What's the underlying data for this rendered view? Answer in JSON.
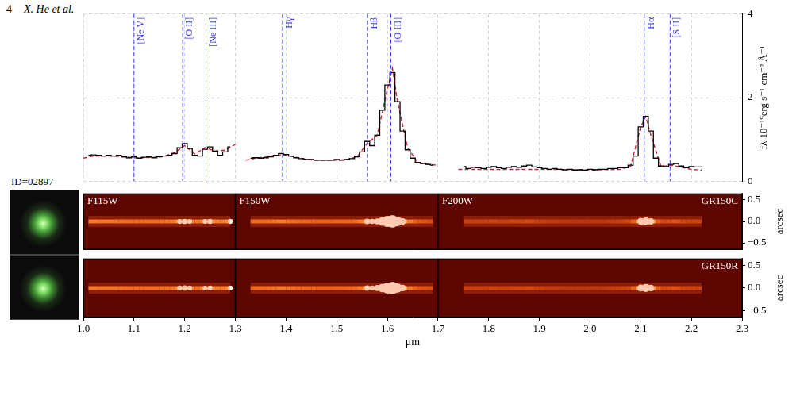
{
  "header": {
    "page": "4",
    "running_title": "X. He et al."
  },
  "object_id": "ID=02897",
  "chart_data": [
    {
      "type": "line",
      "xlim": [
        1.0,
        2.3
      ],
      "xticks": [
        {
          "value": 1,
          "label": "1.0"
        },
        1.1,
        1.2,
        1.3,
        1.4,
        1.5,
        1.6,
        1.7,
        1.8,
        1.9,
        {
          "value": 2,
          "label": "2.0"
        },
        2.1,
        2.2,
        2.3
      ],
      "ylim": [
        0,
        4
      ],
      "yticks": [
        0,
        2,
        4
      ],
      "ylabel": "fλ 10⁻¹⁹erg s⁻¹ cm⁻² Å⁻¹",
      "grid": true,
      "tick_labels": "y",
      "series": [
        {
          "color": "#000000",
          "line_style": "steps",
          "x": [
            1.01,
            1.02,
            1.03,
            1.04,
            1.05,
            1.06,
            1.07,
            1.08,
            1.09,
            1.1,
            1.11,
            1.12,
            1.13,
            1.14,
            1.15,
            1.16,
            1.17,
            1.18,
            1.19,
            1.2,
            1.21,
            1.22,
            1.23,
            1.24,
            1.25,
            1.26,
            1.27,
            1.28,
            1.29,
            1.31,
            1.33,
            1.34,
            1.35,
            1.36,
            1.37,
            1.38,
            1.39,
            1.4,
            1.41,
            1.42,
            1.43,
            1.44,
            1.45,
            1.46,
            1.47,
            1.48,
            1.49,
            1.5,
            1.51,
            1.52,
            1.53,
            1.54,
            1.55,
            1.56,
            1.57,
            1.58,
            1.59,
            1.6,
            1.61,
            1.62,
            1.63,
            1.64,
            1.65,
            1.66,
            1.67,
            1.68,
            1.69,
            1.72,
            1.75,
            1.76,
            1.77,
            1.78,
            1.79,
            1.8,
            1.81,
            1.82,
            1.83,
            1.84,
            1.85,
            1.86,
            1.87,
            1.88,
            1.89,
            1.9,
            1.91,
            1.92,
            1.93,
            1.94,
            1.95,
            1.96,
            1.97,
            1.98,
            1.99,
            2.0,
            2.01,
            2.02,
            2.03,
            2.04,
            2.05,
            2.06,
            2.07,
            2.08,
            2.09,
            2.1,
            2.11,
            2.12,
            2.13,
            2.14,
            2.15,
            2.16,
            2.17,
            2.18,
            2.19,
            2.2,
            2.21,
            2.22
          ],
          "values": [
            0.62,
            0.63,
            0.62,
            0.6,
            0.62,
            0.6,
            0.62,
            0.58,
            0.56,
            0.58,
            0.55,
            0.57,
            0.58,
            0.56,
            0.58,
            0.6,
            0.62,
            0.66,
            0.8,
            0.9,
            0.78,
            0.62,
            0.6,
            0.76,
            0.82,
            0.72,
            0.62,
            0.7,
            0.82,
            null,
            0.55,
            0.56,
            0.55,
            0.56,
            0.58,
            0.62,
            0.66,
            0.64,
            0.6,
            0.56,
            0.54,
            0.52,
            0.52,
            0.5,
            0.5,
            0.5,
            0.5,
            0.52,
            0.5,
            0.52,
            0.54,
            0.58,
            0.7,
            0.95,
            0.85,
            1.1,
            1.7,
            2.3,
            2.6,
            1.9,
            1.2,
            0.75,
            0.55,
            0.45,
            0.42,
            0.4,
            0.38,
            null,
            0.35,
            0.3,
            0.33,
            0.32,
            0.3,
            0.33,
            0.35,
            0.32,
            0.3,
            0.33,
            0.35,
            0.33,
            0.36,
            0.38,
            0.34,
            0.32,
            0.3,
            0.28,
            0.3,
            0.28,
            0.27,
            0.28,
            0.26,
            0.27,
            0.26,
            0.28,
            0.27,
            0.28,
            0.28,
            0.3,
            0.3,
            0.32,
            0.32,
            0.38,
            0.6,
            1.3,
            1.55,
            1.2,
            0.55,
            0.36,
            0.35,
            0.4,
            0.42,
            0.36,
            0.32,
            0.35,
            0.34,
            0.34
          ]
        },
        {
          "color": "#d0213c",
          "line_style": "dashed",
          "x": [
            1.0,
            1.02,
            1.04,
            1.06,
            1.08,
            1.1,
            1.12,
            1.14,
            1.16,
            1.18,
            1.2,
            1.22,
            1.24,
            1.26,
            1.28,
            1.3,
            1.31,
            1.32,
            1.34,
            1.36,
            1.38,
            1.4,
            1.42,
            1.44,
            1.46,
            1.48,
            1.5,
            1.52,
            1.54,
            1.56,
            1.58,
            1.6,
            1.61,
            1.62,
            1.64,
            1.66,
            1.68,
            1.7,
            1.72,
            1.74,
            1.78,
            1.82,
            1.86,
            1.9,
            1.94,
            1.98,
            2.02,
            2.06,
            2.08,
            2.1,
            2.11,
            2.12,
            2.14,
            2.16,
            2.18,
            2.2,
            2.22
          ],
          "values": [
            0.55,
            0.6,
            0.6,
            0.6,
            0.58,
            0.56,
            0.56,
            0.57,
            0.6,
            0.68,
            0.85,
            0.65,
            0.8,
            0.72,
            0.74,
            0.88,
            null,
            0.5,
            0.55,
            0.58,
            0.62,
            0.62,
            0.57,
            0.52,
            0.5,
            0.5,
            0.5,
            0.52,
            0.58,
            0.9,
            1.1,
            2.2,
            2.7,
            1.9,
            0.8,
            0.45,
            0.4,
            0.38,
            null,
            0.28,
            0.28,
            0.28,
            0.28,
            0.28,
            0.28,
            0.27,
            0.27,
            0.28,
            0.35,
            1.3,
            1.55,
            1.1,
            0.35,
            0.38,
            0.33,
            0.28,
            0.26
          ]
        }
      ],
      "annotations": [
        {
          "label": "[Ne V]",
          "x": 1.1
        },
        {
          "label": "[O II]",
          "x": 1.196
        },
        {
          "label": "[Ne III]",
          "x": 1.242
        },
        {
          "label": "Hγ",
          "x": 1.393
        },
        {
          "label": "Hβ",
          "x": 1.561
        },
        {
          "label": "[O III]",
          "x": 1.607
        },
        {
          "label": "Hα",
          "x": 2.107
        },
        {
          "label": "[S II]",
          "x": 2.158
        }
      ]
    },
    {
      "type": "image",
      "title": "GR150C",
      "xlim": [
        1.0,
        2.3
      ],
      "ylim": [
        -0.65,
        0.65
      ],
      "yticks": [
        {
          "value": -0.5,
          "label": "−0.5"
        },
        {
          "value": 0,
          "label": "0.0"
        },
        0.5
      ],
      "ylabel": "arcsec",
      "tick_labels": "y",
      "trace_offset": 0,
      "filters": [
        {
          "name": "F115W",
          "xlim": [
            1.0,
            1.3
          ]
        },
        {
          "name": "F150W",
          "xlim": [
            1.3,
            1.7
          ]
        },
        {
          "name": "F200W",
          "xlim": [
            1.7,
            2.3
          ]
        }
      ]
    },
    {
      "type": "image",
      "title": "GR150R",
      "xlim": [
        1.0,
        2.3
      ],
      "xticks": [
        {
          "value": 1,
          "label": "1.0"
        },
        1.1,
        1.2,
        1.3,
        1.4,
        1.5,
        1.6,
        1.7,
        1.8,
        1.9,
        {
          "value": 2,
          "label": "2.0"
        },
        2.1,
        2.2,
        2.3
      ],
      "xlabel": "μm",
      "ylim": [
        -0.65,
        0.65
      ],
      "yticks": [
        {
          "value": -0.5,
          "label": "−0.5"
        },
        {
          "value": 0,
          "label": "0.0"
        },
        0.5
      ],
      "ylabel": "arcsec",
      "trace_offset": 0,
      "filter_edges": [
        1.3,
        1.7
      ]
    }
  ]
}
